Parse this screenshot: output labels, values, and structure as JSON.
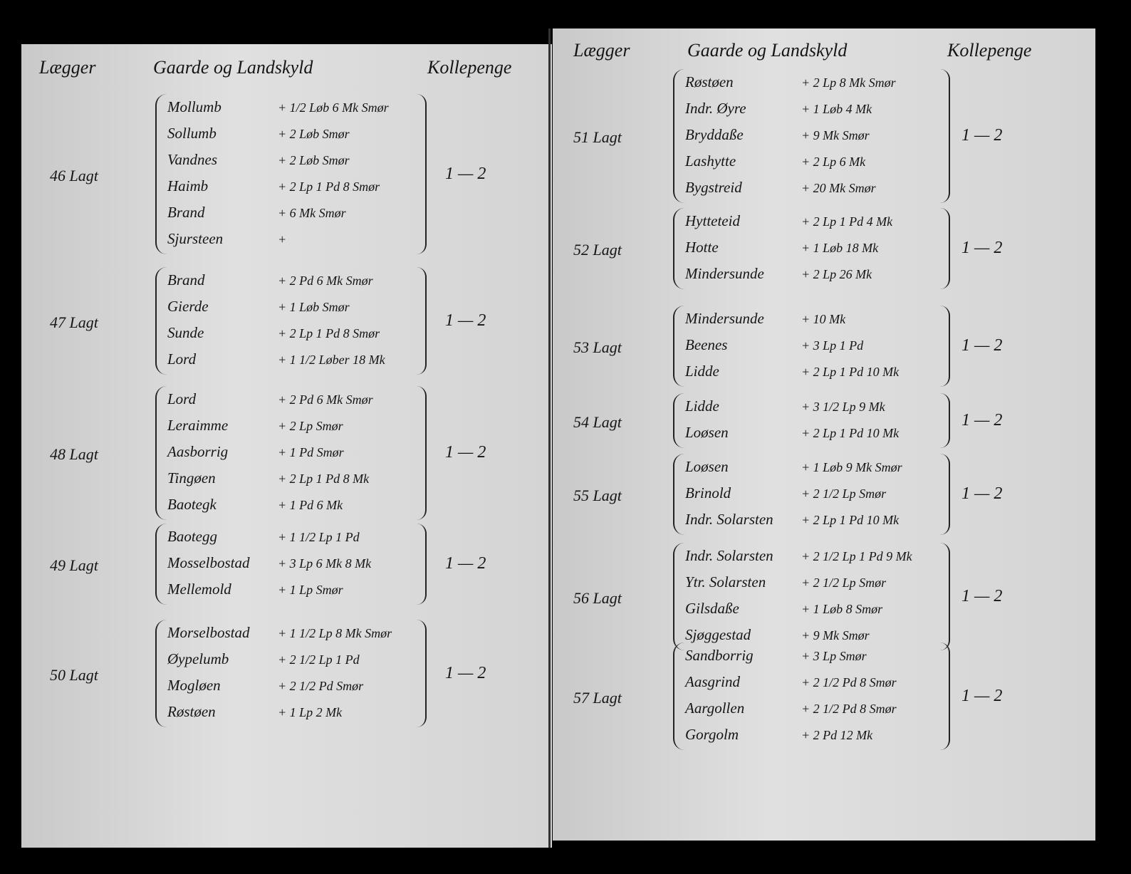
{
  "left_page": {
    "header": {
      "lag": "Lægger",
      "gaarde": "Gaarde og Landskyld",
      "penge": "Kollepenge"
    },
    "groups": [
      {
        "label": "46 Lagt",
        "payment": "1 — 2",
        "rows": [
          {
            "farm": "Mollumb",
            "tax": "+ 1/2 Løb 6 Mk Smør"
          },
          {
            "farm": "Sollumb",
            "tax": "+ 2 Løb Smør"
          },
          {
            "farm": "Vandnes",
            "tax": "+ 2 Løb Smør"
          },
          {
            "farm": "Haimb",
            "tax": "+ 2 Lp 1 Pd 8 Smør"
          },
          {
            "farm": "Brand",
            "tax": "+ 6 Mk Smør"
          },
          {
            "farm": "Sjursteen",
            "tax": "+"
          }
        ]
      },
      {
        "label": "47 Lagt",
        "payment": "1 — 2",
        "rows": [
          {
            "farm": "Brand",
            "tax": "+ 2 Pd 6 Mk Smør"
          },
          {
            "farm": "Gierde",
            "tax": "+ 1 Løb Smør"
          },
          {
            "farm": "Sunde",
            "tax": "+ 2 Lp 1 Pd 8 Smør"
          },
          {
            "farm": "Lord",
            "tax": "+ 1 1/2 Løber 18 Mk"
          }
        ]
      },
      {
        "label": "48 Lagt",
        "payment": "1 — 2",
        "rows": [
          {
            "farm": "Lord",
            "tax": "+ 2 Pd 6 Mk Smør"
          },
          {
            "farm": "Leraimme",
            "tax": "+ 2 Lp Smør"
          },
          {
            "farm": "Aasborrig",
            "tax": "+ 1 Pd Smør"
          },
          {
            "farm": "Tingøen",
            "tax": "+ 2 Lp 1 Pd 8 Mk"
          },
          {
            "farm": "Baotegk",
            "tax": "+ 1 Pd 6 Mk"
          }
        ]
      },
      {
        "label": "49 Lagt",
        "payment": "1 — 2",
        "rows": [
          {
            "farm": "Baotegg",
            "tax": "+ 1 1/2 Lp 1 Pd"
          },
          {
            "farm": "Mosselbostad",
            "tax": "+ 3 Lp 6 Mk 8 Mk"
          },
          {
            "farm": "Mellemold",
            "tax": "+ 1 Lp Smør"
          }
        ]
      },
      {
        "label": "50 Lagt",
        "payment": "1 — 2",
        "rows": [
          {
            "farm": "Morselbostad",
            "tax": "+ 1 1/2 Lp 8 Mk Smør"
          },
          {
            "farm": "Øypelumb",
            "tax": "+ 2 1/2 Lp 1 Pd"
          },
          {
            "farm": "Mogløen",
            "tax": "+ 2 1/2 Pd Smør"
          },
          {
            "farm": "Røstøen",
            "tax": "+ 1 Lp 2 Mk"
          }
        ]
      }
    ]
  },
  "right_page": {
    "header": {
      "lag": "Lægger",
      "gaarde": "Gaarde og Landskyld",
      "penge": "Kollepenge"
    },
    "groups": [
      {
        "label": "51 Lagt",
        "payment": "1 — 2",
        "rows": [
          {
            "farm": "Røstøen",
            "tax": "+ 2 Lp 8 Mk Smør"
          },
          {
            "farm": "Indr. Øyre",
            "tax": "+ 1 Løb 4 Mk"
          },
          {
            "farm": "Bryddaße",
            "tax": "+ 9 Mk Smør"
          },
          {
            "farm": "Lashytte",
            "tax": "+ 2 Lp 6 Mk"
          },
          {
            "farm": "Bygstreid",
            "tax": "+ 20 Mk Smør"
          }
        ]
      },
      {
        "label": "52 Lagt",
        "payment": "1 — 2",
        "rows": [
          {
            "farm": "Hytteteid",
            "tax": "+ 2 Lp 1 Pd 4 Mk"
          },
          {
            "farm": "Hotte",
            "tax": "+ 1 Løb 18 Mk"
          },
          {
            "farm": "Mindersunde",
            "tax": "+ 2 Lp 26 Mk"
          }
        ]
      },
      {
        "label": "53 Lagt",
        "payment": "1 — 2",
        "rows": [
          {
            "farm": "Mindersunde",
            "tax": "+ 10 Mk"
          },
          {
            "farm": "Beenes",
            "tax": "+ 3 Lp 1 Pd"
          },
          {
            "farm": "Lidde",
            "tax": "+ 2 Lp 1 Pd 10 Mk"
          }
        ]
      },
      {
        "label": "54 Lagt",
        "payment": "1 — 2",
        "rows": [
          {
            "farm": "Lidde",
            "tax": "+ 3 1/2 Lp 9 Mk"
          },
          {
            "farm": "Loøsen",
            "tax": "+ 2 Lp 1 Pd 10 Mk"
          }
        ]
      },
      {
        "label": "55 Lagt",
        "payment": "1 — 2",
        "rows": [
          {
            "farm": "Loøsen",
            "tax": "+ 1 Løb 9 Mk Smør"
          },
          {
            "farm": "Brinold",
            "tax": "+ 2 1/2 Lp Smør"
          },
          {
            "farm": "Indr. Solarsten",
            "tax": "+ 2 Lp 1 Pd 10 Mk"
          }
        ]
      },
      {
        "label": "56 Lagt",
        "payment": "1 — 2",
        "rows": [
          {
            "farm": "Indr. Solarsten",
            "tax": "+ 2 1/2 Lp 1 Pd 9 Mk"
          },
          {
            "farm": "Ytr. Solarsten",
            "tax": "+ 2 1/2 Lp Smør"
          },
          {
            "farm": "Gilsdaße",
            "tax": "+ 1 Løb 8 Smør"
          },
          {
            "farm": "Sjøggestad",
            "tax": "+ 9 Mk Smør"
          }
        ]
      },
      {
        "label": "57 Lagt",
        "payment": "1 — 2",
        "rows": [
          {
            "farm": "Sandborrig",
            "tax": "+ 3 Lp Smør"
          },
          {
            "farm": "Aasgrind",
            "tax": "+ 2 1/2 Pd 8 Smør"
          },
          {
            "farm": "Aargollen",
            "tax": "+ 2 1/2 Pd 8 Smør"
          },
          {
            "farm": "Gorgolm",
            "tax": "+ 2 Pd 12 Mk"
          }
        ]
      }
    ]
  }
}
